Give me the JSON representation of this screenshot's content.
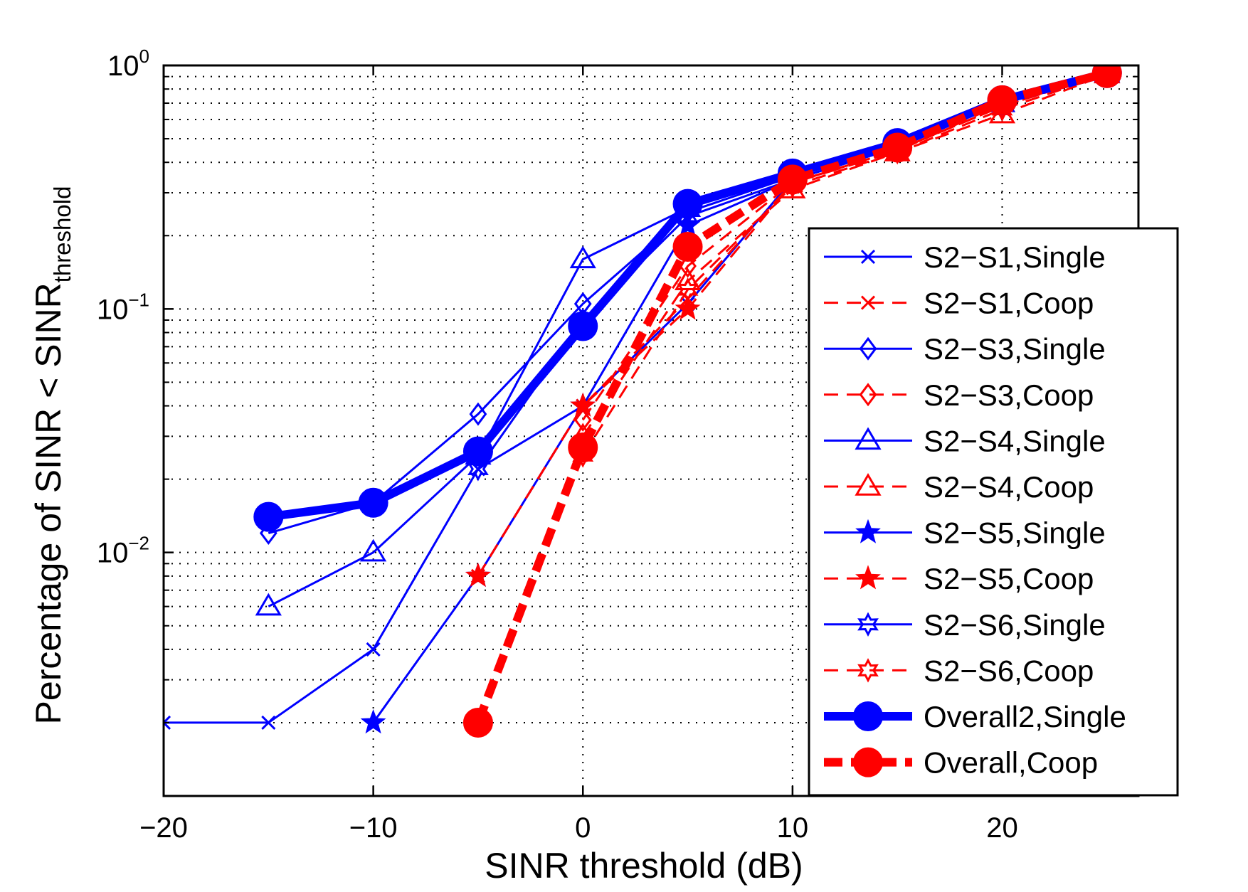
{
  "chart_data": {
    "type": "line",
    "title": "",
    "xlabel": "SINR threshold (dB)",
    "ylabel_main": "Percentage of SINR < SINR",
    "ylabel_subscript": "threshold",
    "xscale": "linear",
    "yscale": "log",
    "xlim": [
      -20,
      26.5
    ],
    "ylim": [
      0.001,
      1
    ],
    "xticks": [
      -20,
      -10,
      0,
      10,
      20
    ],
    "xtick_labels": [
      "−20",
      "−10",
      "0",
      "10",
      "20"
    ],
    "yticks": [
      {
        "value": 1,
        "base": "10",
        "exp": "0"
      },
      {
        "value": 0.1,
        "base": "10",
        "exp": "−1"
      },
      {
        "value": 0.01,
        "base": "10",
        "exp": "−2"
      }
    ],
    "grid": true,
    "legend_position": "lower-right",
    "series": [
      {
        "name": "S2−S1,Single",
        "color": "#0000ff",
        "dash": "solid",
        "marker": "x",
        "width": 3,
        "msize": 9,
        "x": [
          -20,
          -15,
          -10,
          -5,
          0,
          5,
          10,
          15,
          20,
          25
        ],
        "y": [
          0.002,
          0.002,
          0.004,
          0.022,
          0.04,
          0.105,
          0.34,
          0.46,
          0.7,
          0.92
        ]
      },
      {
        "name": "S2−S1,Coop",
        "color": "#ff0000",
        "dash": "dashed",
        "marker": "x",
        "width": 3,
        "msize": 9,
        "x": [
          -5,
          0,
          5,
          10,
          15,
          20,
          25
        ],
        "y": [
          0.008,
          0.04,
          0.11,
          0.33,
          0.45,
          0.68,
          0.93
        ]
      },
      {
        "name": "S2−S3,Single",
        "color": "#0000ff",
        "dash": "solid",
        "marker": "diamond",
        "width": 3,
        "msize": 14,
        "x": [
          -15,
          -10,
          -5,
          0,
          5,
          10,
          15,
          20,
          25
        ],
        "y": [
          0.012,
          0.016,
          0.037,
          0.105,
          0.25,
          0.35,
          0.47,
          0.71,
          0.93
        ]
      },
      {
        "name": "S2−S3,Coop",
        "color": "#ff0000",
        "dash": "dashed",
        "marker": "diamond",
        "width": 3,
        "msize": 14,
        "x": [
          0,
          5,
          10,
          15,
          20,
          25
        ],
        "y": [
          0.035,
          0.15,
          0.33,
          0.45,
          0.68,
          0.93
        ]
      },
      {
        "name": "S2−S4,Single",
        "color": "#0000ff",
        "dash": "solid",
        "marker": "triangle",
        "width": 3,
        "msize": 16,
        "x": [
          -15,
          -10,
          -5,
          0,
          5,
          10,
          15,
          20,
          25
        ],
        "y": [
          0.006,
          0.01,
          0.025,
          0.16,
          0.26,
          0.35,
          0.47,
          0.7,
          0.93
        ]
      },
      {
        "name": "S2−S4,Coop",
        "color": "#ff0000",
        "dash": "dashed",
        "marker": "triangle",
        "width": 3,
        "msize": 16,
        "x": [
          0,
          5,
          10,
          15,
          20,
          25
        ],
        "y": [
          0.03,
          0.13,
          0.31,
          0.44,
          0.63,
          0.92
        ]
      },
      {
        "name": "S2−S5,Single",
        "color": "#0000ff",
        "dash": "solid",
        "marker": "star5",
        "width": 3,
        "msize": 16,
        "x": [
          -10,
          -5,
          0,
          5,
          10,
          15,
          20,
          25
        ],
        "y": [
          0.002,
          0.008,
          0.04,
          0.22,
          0.34,
          0.46,
          0.7,
          0.92
        ]
      },
      {
        "name": "S2−S5,Coop",
        "color": "#ff0000",
        "dash": "dashed",
        "marker": "star5",
        "width": 3,
        "msize": 16,
        "x": [
          -5,
          0,
          5,
          10,
          15,
          20,
          25
        ],
        "y": [
          0.008,
          0.04,
          0.1,
          0.33,
          0.45,
          0.68,
          0.93
        ]
      },
      {
        "name": "S2−S6,Single",
        "color": "#0000ff",
        "dash": "solid",
        "marker": "star6",
        "width": 3,
        "msize": 14,
        "x": [
          -5,
          0,
          5,
          10,
          15,
          20,
          25
        ],
        "y": [
          0.022,
          0.09,
          0.24,
          0.34,
          0.46,
          0.7,
          0.92
        ]
      },
      {
        "name": "S2−S6,Coop",
        "color": "#ff0000",
        "dash": "dashed",
        "marker": "star6",
        "width": 3,
        "msize": 14,
        "x": [
          0,
          5,
          10,
          15,
          20,
          25
        ],
        "y": [
          0.025,
          0.12,
          0.32,
          0.44,
          0.66,
          0.92
        ]
      },
      {
        "name": "Overall2,Single",
        "color": "#0000ff",
        "dash": "solid",
        "marker": "circle",
        "width": 12,
        "msize": 20,
        "x": [
          -15,
          -10,
          -5,
          0,
          5,
          10,
          15,
          20,
          25
        ],
        "y": [
          0.014,
          0.016,
          0.026,
          0.085,
          0.27,
          0.36,
          0.48,
          0.72,
          0.93
        ]
      },
      {
        "name": "Overall,Coop",
        "color": "#ff0000",
        "dash": "dashed",
        "marker": "circle",
        "width": 12,
        "msize": 20,
        "x": [
          -5,
          0,
          5,
          10,
          15,
          20,
          25
        ],
        "y": [
          0.002,
          0.027,
          0.18,
          0.34,
          0.46,
          0.72,
          0.93
        ]
      }
    ]
  }
}
